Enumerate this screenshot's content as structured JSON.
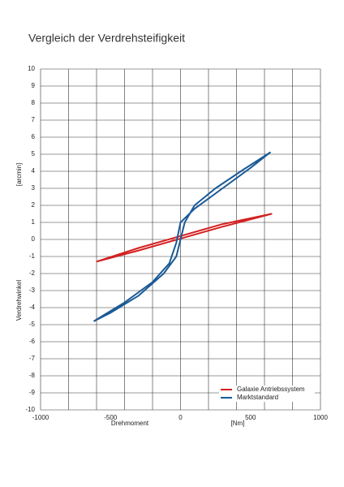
{
  "chart_data": {
    "type": "line",
    "title": "Vergleich der Verdrehsteifigkeit",
    "x_label": "Drehmoment",
    "x_unit": "[Nm]",
    "y_label": "Verdrehwinkel",
    "y_unit": "[arcmin]",
    "xlim": [
      -1000,
      1000
    ],
    "ylim": [
      -10,
      10
    ],
    "xticks": [
      -1000,
      -500,
      0,
      500,
      1000
    ],
    "x_gridlines": [
      -1000,
      -800,
      -600,
      -400,
      -200,
      0,
      200,
      400,
      600,
      800,
      1000
    ],
    "yticks": [
      -10,
      -9,
      -8,
      -7,
      -6,
      -5,
      -4,
      -3,
      -2,
      -1,
      0,
      1,
      2,
      3,
      4,
      5,
      6,
      7,
      8,
      9,
      10
    ],
    "grid": true,
    "legend": "lower right",
    "series": [
      {
        "name": "Galaxie Antriebssystem",
        "color": "#d42020",
        "x": [
          -600,
          -300,
          0,
          300,
          650,
          300,
          0,
          -300,
          -600
        ],
        "values": [
          -1.3,
          -0.65,
          0.05,
          0.75,
          1.5,
          0.9,
          0.2,
          -0.5,
          -1.3
        ]
      },
      {
        "name": "Marktstandard",
        "color": "#1a5a96",
        "x": [
          -620,
          -400,
          -200,
          -80,
          -30,
          0,
          100,
          300,
          500,
          640,
          450,
          250,
          100,
          30,
          0,
          -30,
          -120,
          -300,
          -500,
          -620
        ],
        "values": [
          -4.8,
          -3.7,
          -2.5,
          -1.4,
          -0.2,
          1.0,
          1.8,
          3.0,
          4.2,
          5.1,
          4.1,
          3.0,
          2.0,
          1.0,
          0.0,
          -1.0,
          -2.0,
          -3.3,
          -4.3,
          -4.8
        ]
      }
    ]
  }
}
